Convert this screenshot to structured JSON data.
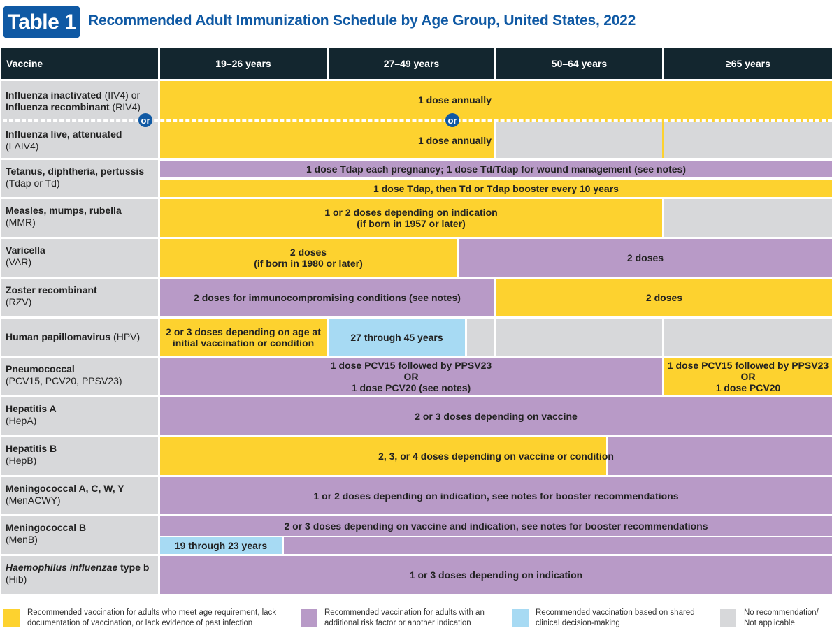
{
  "header": {
    "badge": "Table 1",
    "title": "Recommended Adult Immunization Schedule by Age Group, United States, 2022"
  },
  "columns": [
    "Vaccine",
    "19–26 years",
    "27–49 years",
    "50–64 years",
    "≥65 years"
  ],
  "or_label": "or",
  "rows": [
    {
      "name": "Influenza inactivated",
      "abbr": "(IIV4) or",
      "name2": "Influenza recombinant",
      "abbr2": "(RIV4)",
      "cells": [
        "1 dose annually"
      ]
    },
    {
      "name": "Influenza live, attenuated",
      "abbr": "(LAIV4)",
      "cells": [
        "1 dose annually"
      ]
    },
    {
      "name": "Tetanus, diphtheria, pertussis",
      "abbr": "(Tdap or Td)",
      "cells": [
        "1 dose Tdap each pregnancy; 1 dose Td/Tdap for wound management (see notes)",
        "1 dose Tdap, then Td or Tdap booster every 10 years"
      ]
    },
    {
      "name": "Measles, mumps, rubella",
      "abbr": "(MMR)",
      "cells": [
        "1 or 2 doses depending on indication",
        "(if born in 1957 or later)"
      ]
    },
    {
      "name": "Varicella",
      "abbr": "(VAR)",
      "cells": [
        "2 doses",
        "(if born in 1980 or later)",
        "2 doses"
      ]
    },
    {
      "name": "Zoster recombinant",
      "abbr": "(RZV)",
      "cells": [
        "2 doses for immunocompromising conditions (see notes)",
        "2 doses"
      ]
    },
    {
      "name": "Human papillomavirus",
      "abbr": "(HPV)",
      "cells": [
        "2 or 3 doses depending on age at initial vaccination or condition",
        "27 through 45 years"
      ]
    },
    {
      "name": "Pneumococcal",
      "abbr": "(PCV15, PCV20, PPSV23)",
      "cells": [
        "1 dose PCV15 followed by PPSV23",
        "OR",
        "1 dose PCV20 (see notes)",
        "1 dose PCV15 followed by PPSV23",
        "OR",
        "1 dose PCV20"
      ]
    },
    {
      "name": "Hepatitis A",
      "abbr": "(HepA)",
      "cells": [
        "2 or 3 doses depending on vaccine"
      ]
    },
    {
      "name": "Hepatitis B",
      "abbr": "(HepB)",
      "cells": [
        "2, 3, or 4 doses depending on vaccine or condition"
      ]
    },
    {
      "name": "Meningococcal A, C, W, Y",
      "abbr": "(MenACWY)",
      "cells": [
        "1 or 2 doses depending on indication, see notes for booster recommendations"
      ]
    },
    {
      "name": "Meningococcal B",
      "abbr": "(MenB)",
      "cells": [
        "2 or 3 doses depending on vaccine and indication, see notes for booster recommendations",
        "19 through 23 years"
      ]
    },
    {
      "name": "Haemophilus influenzae",
      "abbr": "type b",
      "abbr2": "(Hib)",
      "cells": [
        "1 or 3 doses depending on indication"
      ]
    }
  ],
  "legend": [
    {
      "color": "#fdd22f",
      "text": "Recommended vaccination for adults who meet age requirement, lack documentation of vaccination, or lack evidence of past infection"
    },
    {
      "color": "#b89ac7",
      "text": "Recommended vaccination for adults with an additional risk factor or another indication"
    },
    {
      "color": "#a7daf3",
      "text": "Recommended vaccination based on shared clinical decision-making"
    },
    {
      "color": "#d7d8da",
      "text": "No recommendation/ Not applicable"
    }
  ]
}
